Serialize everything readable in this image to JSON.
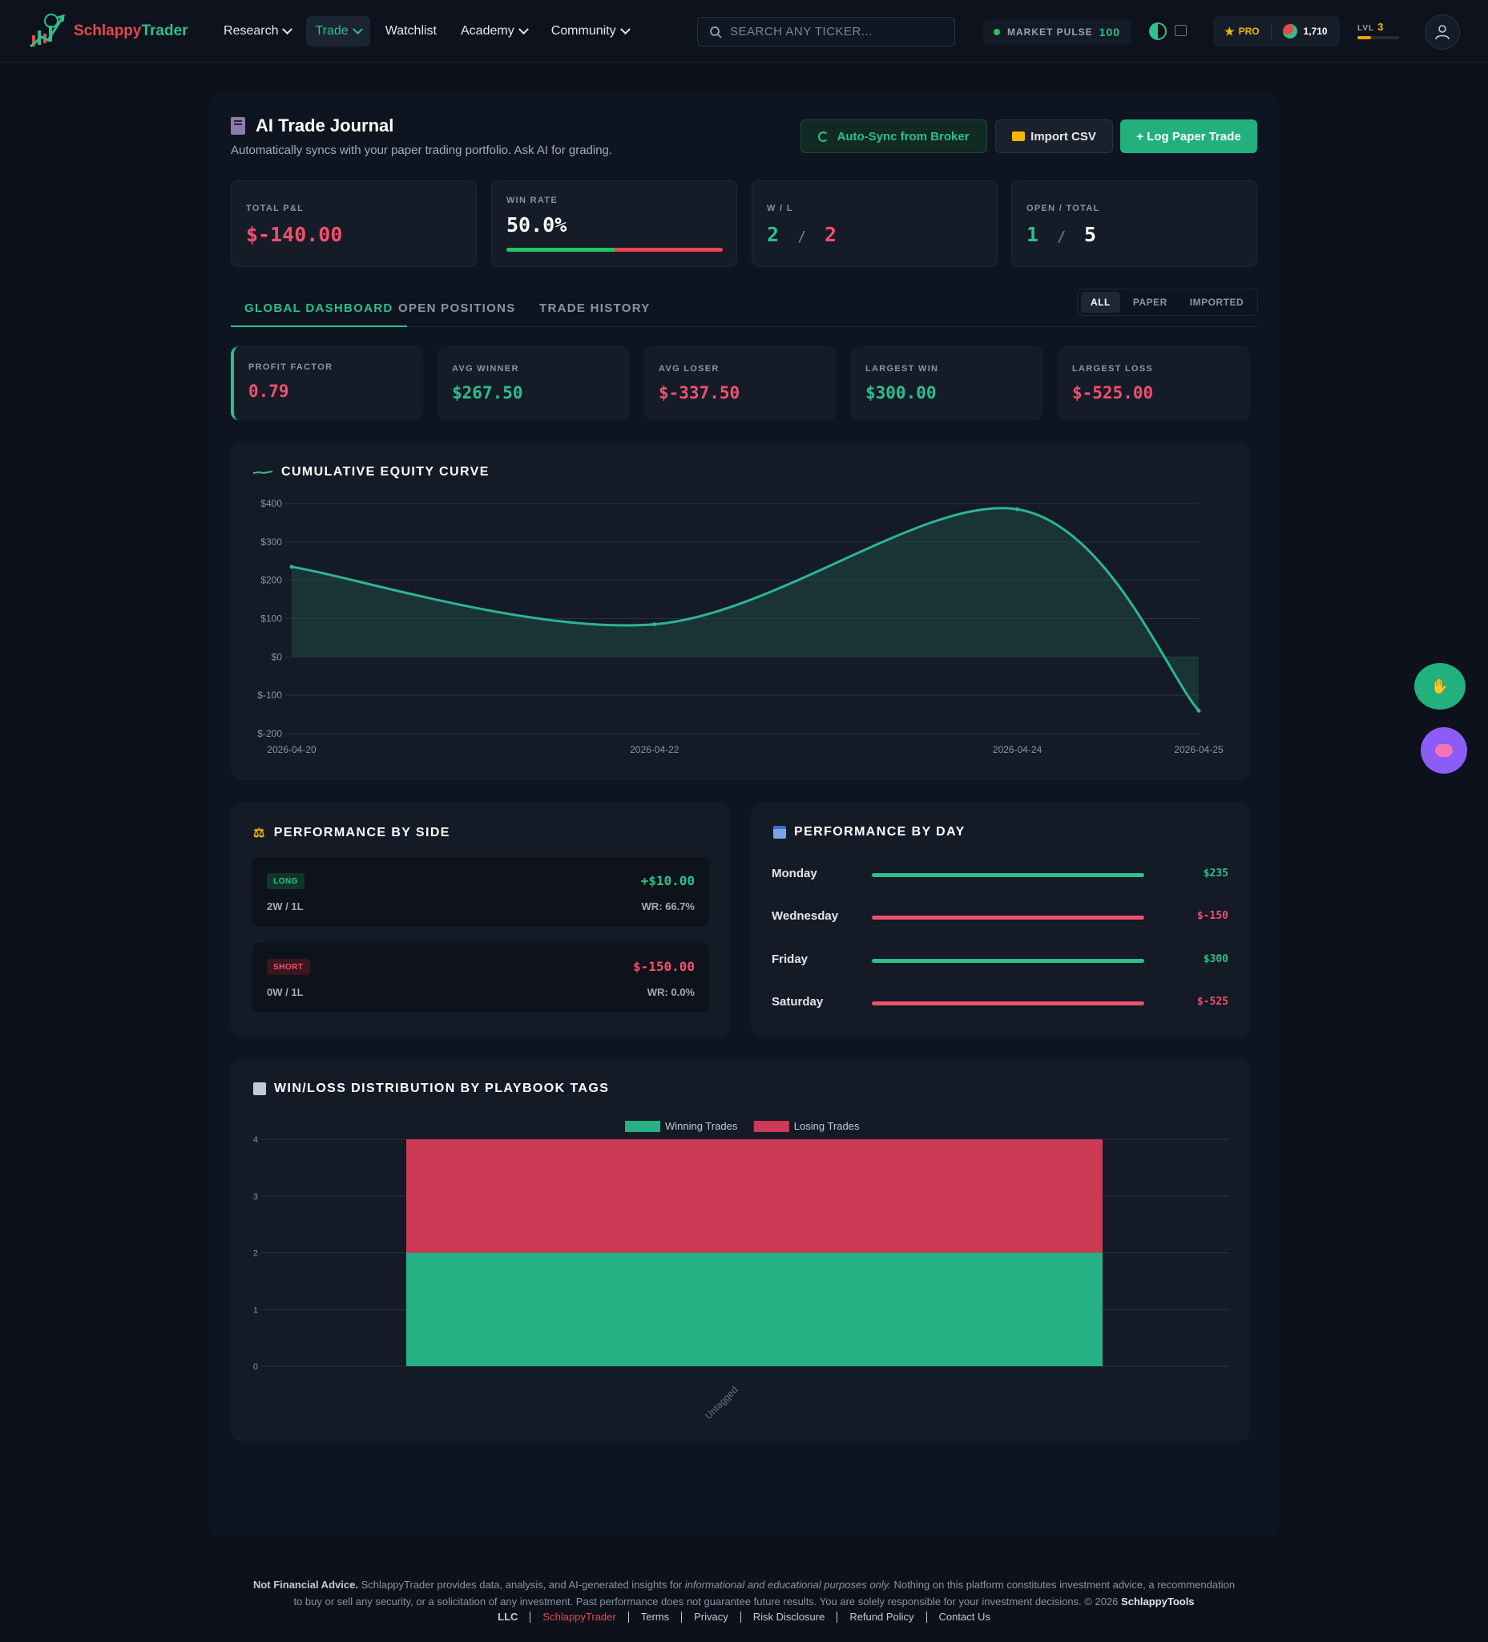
{
  "nav": {
    "logo_part1": "Schlappy",
    "logo_part2": "Trader",
    "items": [
      {
        "label": "Research",
        "dropdown": true
      },
      {
        "label": "Trade",
        "dropdown": true,
        "active": true
      },
      {
        "label": "Watchlist",
        "dropdown": false
      },
      {
        "label": "Academy",
        "dropdown": true
      },
      {
        "label": "Community",
        "dropdown": true
      }
    ],
    "search_placeholder": "SEARCH ANY TICKER...",
    "market_pulse_label": "MARKET PULSE",
    "market_pulse_value": "100",
    "pro_label": "PRO",
    "coins": "1,710",
    "level_label": "LVL",
    "level_value": "3",
    "level_progress": 0.33,
    "icons": [
      "search-icon",
      "theme-toggle-icon",
      "image-icon",
      "star-icon",
      "globe-icon",
      "user-icon"
    ]
  },
  "header": {
    "title": "AI Trade Journal",
    "subtitle": "Automatically syncs with your paper trading portfolio. Ask AI for grading.",
    "btn_sync": "Auto-Sync from Broker",
    "btn_import": "Import CSV",
    "btn_log": "+ Log Paper Trade"
  },
  "stats": {
    "total_pnl_label": "TOTAL P&L",
    "total_pnl": "$-140.00",
    "win_rate_label": "WIN RATE",
    "win_rate": "50.0%",
    "win_rate_fraction": 0.5,
    "wl_label": "W / L",
    "wins": "2",
    "losses": "2",
    "slash": "/",
    "open_total_label": "OPEN / TOTAL",
    "open": "1",
    "total": "5"
  },
  "tabs": [
    "GLOBAL DASHBOARD",
    "OPEN POSITIONS",
    "TRADE HISTORY"
  ],
  "filters": [
    "ALL",
    "PAPER",
    "IMPORTED"
  ],
  "metrics": [
    {
      "label": "PROFIT FACTOR",
      "value": "0.79",
      "tone": "red"
    },
    {
      "label": "AVG WINNER",
      "value": "$267.50",
      "tone": "green"
    },
    {
      "label": "AVG LOSER",
      "value": "$-337.50",
      "tone": "red"
    },
    {
      "label": "LARGEST WIN",
      "value": "$300.00",
      "tone": "green"
    },
    {
      "label": "LARGEST LOSS",
      "value": "$-525.00",
      "tone": "red"
    }
  ],
  "equity": {
    "title": "CUMULATIVE EQUITY CURVE"
  },
  "side": {
    "title": "PERFORMANCE BY SIDE",
    "rows": [
      {
        "badge": "LONG",
        "record": "2W / 1L",
        "pnl": "+$10.00",
        "wr": "WR: 66.7%"
      },
      {
        "badge": "SHORT",
        "record": "0W / 1L",
        "pnl": "$-150.00",
        "wr": "WR: 0.0%"
      }
    ]
  },
  "days": {
    "title": "PERFORMANCE BY DAY",
    "rows": [
      {
        "day": "Monday",
        "value": "$235",
        "positive": true
      },
      {
        "day": "Wednesday",
        "value": "$-150",
        "positive": false
      },
      {
        "day": "Friday",
        "value": "$300",
        "positive": true
      },
      {
        "day": "Saturday",
        "value": "$-525",
        "positive": false
      }
    ]
  },
  "playbook": {
    "title": "WIN/LOSS DISTRIBUTION BY PLAYBOOK TAGS"
  },
  "chart_data": [
    {
      "type": "area",
      "title": "CUMULATIVE EQUITY CURVE",
      "x": [
        "2026-04-20",
        "2026-04-22",
        "2026-04-24",
        "2026-04-25"
      ],
      "series": [
        {
          "values": [
            235,
            85,
            385,
            -140
          ]
        }
      ],
      "ylim": [
        -200,
        400
      ],
      "yticks": [
        400,
        300,
        200,
        100,
        0,
        -100,
        -200
      ],
      "ytick_labels": [
        "$400",
        "$300",
        "$200",
        "$100",
        "$0",
        "$-100",
        "$-200"
      ],
      "grid": true,
      "colors": {
        "line": "#2bb596",
        "fill": "#1f4a44"
      }
    },
    {
      "type": "bar",
      "stacked": true,
      "title": "WIN/LOSS DISTRIBUTION BY PLAYBOOK TAGS",
      "categories": [
        "Untagged"
      ],
      "series": [
        {
          "name": "Winning Trades",
          "values": [
            2
          ],
          "color": "#27b083"
        },
        {
          "name": "Losing Trades",
          "values": [
            2
          ],
          "color": "#cc3a56"
        }
      ],
      "ylim": [
        0,
        4
      ],
      "yticks": [
        0,
        1,
        2,
        3,
        4
      ],
      "legend": "top-center",
      "grid": true
    }
  ],
  "footer": {
    "bold_lead": "Not Financial Advice.",
    "text1": "SchlappyTrader provides data, analysis, and AI-generated insights for",
    "italic": "informational and educational purposes only.",
    "text2": "Nothing on this platform constitutes investment advice, a recommendation",
    "line2": "to buy or sell any security, or a solicitation of any investment. Past performance does not guarantee future results. You are solely responsible for your investment decisions.",
    "copyright": "© 2026",
    "brand": "SchlappyTools",
    "links": [
      "LLC",
      "SchlappyTrader",
      "Terms",
      "Privacy",
      "Risk Disclosure",
      "Refund Policy",
      "Contact Us"
    ]
  },
  "colors": {
    "green": "#2fbf8a",
    "red": "#f0506e",
    "bg": "#0c111b",
    "card": "#141a26"
  }
}
